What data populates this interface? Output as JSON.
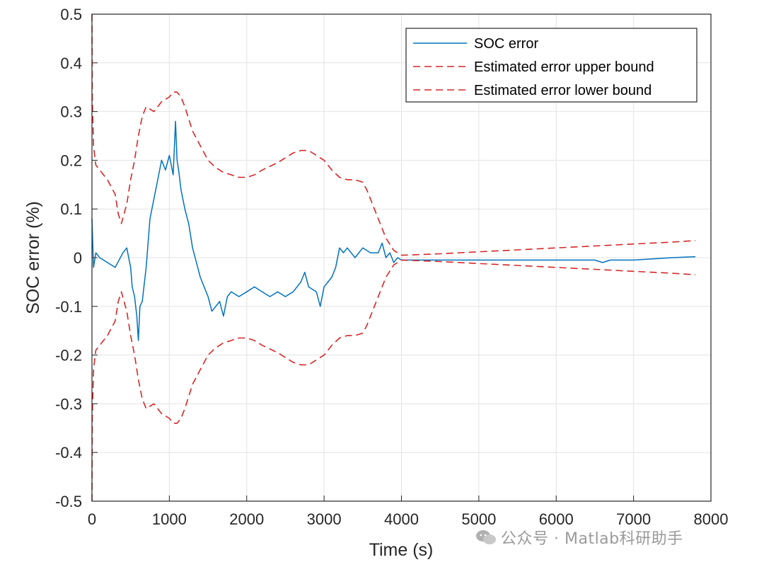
{
  "chart_data": {
    "type": "line",
    "xlabel": "Time (s)",
    "ylabel": "SOC error (%)",
    "xlim": [
      0,
      8000
    ],
    "ylim": [
      -0.5,
      0.5
    ],
    "xticks": [
      0,
      1000,
      2000,
      3000,
      4000,
      5000,
      6000,
      7000,
      8000
    ],
    "yticks": [
      -0.5,
      -0.4,
      -0.3,
      -0.2,
      -0.1,
      0,
      0.1,
      0.2,
      0.3,
      0.4,
      0.5
    ],
    "xtick_labels": [
      "0",
      "1000",
      "2000",
      "3000",
      "4000",
      "5000",
      "6000",
      "7000",
      "8000"
    ],
    "ytick_labels": [
      "-0.5",
      "-0.4",
      "-0.3",
      "-0.2",
      "-0.1",
      "0",
      "0.1",
      "0.2",
      "0.3",
      "0.4",
      "0.5"
    ],
    "grid": true,
    "legend_position": "top-right",
    "series": [
      {
        "name": "SOC error",
        "style": "solid",
        "color": "#0072bd",
        "x": [
          0,
          20,
          50,
          100,
          200,
          300,
          400,
          450,
          500,
          520,
          550,
          580,
          600,
          620,
          650,
          700,
          750,
          800,
          850,
          900,
          950,
          1000,
          1050,
          1080,
          1100,
          1120,
          1150,
          1200,
          1250,
          1300,
          1350,
          1400,
          1450,
          1500,
          1550,
          1600,
          1650,
          1700,
          1750,
          1800,
          1900,
          2000,
          2100,
          2200,
          2300,
          2400,
          2500,
          2600,
          2700,
          2750,
          2800,
          2900,
          2950,
          3000,
          3050,
          3100,
          3150,
          3200,
          3250,
          3300,
          3400,
          3500,
          3600,
          3700,
          3750,
          3800,
          3850,
          3900,
          3950,
          4000,
          4500,
          5000,
          5500,
          6000,
          6500,
          6600,
          6700,
          7000,
          7500,
          7800
        ],
        "y": [
          0.08,
          -0.02,
          0.01,
          0.0,
          -0.01,
          -0.02,
          0.01,
          0.02,
          -0.02,
          -0.06,
          -0.08,
          -0.12,
          -0.17,
          -0.1,
          -0.09,
          -0.02,
          0.08,
          0.12,
          0.16,
          0.2,
          0.18,
          0.21,
          0.17,
          0.28,
          0.2,
          0.18,
          0.14,
          0.1,
          0.07,
          0.02,
          -0.01,
          -0.04,
          -0.06,
          -0.08,
          -0.11,
          -0.1,
          -0.09,
          -0.12,
          -0.08,
          -0.07,
          -0.08,
          -0.07,
          -0.06,
          -0.07,
          -0.08,
          -0.07,
          -0.08,
          -0.07,
          -0.05,
          -0.03,
          -0.06,
          -0.07,
          -0.1,
          -0.06,
          -0.05,
          -0.04,
          -0.02,
          0.02,
          0.01,
          0.02,
          0.0,
          0.02,
          0.01,
          0.01,
          0.03,
          0.0,
          0.01,
          -0.01,
          0.0,
          -0.005,
          -0.005,
          -0.005,
          -0.005,
          -0.005,
          -0.005,
          -0.01,
          -0.005,
          -0.005,
          0.0,
          0.002
        ]
      },
      {
        "name": "Estimated error upper bound",
        "style": "dashed",
        "color": "#d62728",
        "x": [
          0,
          5,
          20,
          50,
          100,
          200,
          300,
          340,
          380,
          450,
          500,
          550,
          600,
          650,
          700,
          800,
          900,
          1000,
          1050,
          1100,
          1150,
          1200,
          1300,
          1400,
          1500,
          1600,
          1700,
          1800,
          1900,
          2000,
          2100,
          2200,
          2400,
          2600,
          2700,
          2800,
          2900,
          3000,
          3100,
          3200,
          3300,
          3400,
          3500,
          3550,
          3600,
          3700,
          3800,
          3900,
          4000,
          4500,
          5000,
          5500,
          6000,
          6500,
          7000,
          7500,
          7800
        ],
        "y": [
          0.5,
          0.33,
          0.23,
          0.19,
          0.18,
          0.16,
          0.13,
          0.09,
          0.07,
          0.11,
          0.16,
          0.2,
          0.25,
          0.29,
          0.31,
          0.3,
          0.32,
          0.33,
          0.34,
          0.34,
          0.33,
          0.31,
          0.26,
          0.23,
          0.2,
          0.185,
          0.175,
          0.17,
          0.165,
          0.165,
          0.17,
          0.18,
          0.195,
          0.215,
          0.22,
          0.22,
          0.21,
          0.2,
          0.18,
          0.165,
          0.16,
          0.16,
          0.155,
          0.14,
          0.12,
          0.08,
          0.04,
          0.015,
          0.005,
          0.008,
          0.012,
          0.016,
          0.02,
          0.024,
          0.028,
          0.032,
          0.035
        ]
      },
      {
        "name": "Estimated error lower bound",
        "style": "dashed",
        "color": "#d62728",
        "x": [
          0,
          5,
          20,
          50,
          100,
          200,
          300,
          340,
          380,
          450,
          500,
          550,
          600,
          650,
          700,
          800,
          900,
          1000,
          1050,
          1100,
          1150,
          1200,
          1300,
          1400,
          1500,
          1600,
          1700,
          1800,
          1900,
          2000,
          2100,
          2200,
          2400,
          2600,
          2700,
          2800,
          2900,
          3000,
          3100,
          3200,
          3300,
          3400,
          3500,
          3550,
          3600,
          3700,
          3800,
          3900,
          4000,
          4500,
          5000,
          5500,
          6000,
          6500,
          7000,
          7500,
          7800
        ],
        "y": [
          -0.5,
          -0.33,
          -0.23,
          -0.19,
          -0.18,
          -0.16,
          -0.13,
          -0.09,
          -0.07,
          -0.11,
          -0.16,
          -0.2,
          -0.25,
          -0.29,
          -0.31,
          -0.3,
          -0.32,
          -0.33,
          -0.34,
          -0.34,
          -0.33,
          -0.31,
          -0.26,
          -0.23,
          -0.2,
          -0.185,
          -0.175,
          -0.17,
          -0.165,
          -0.165,
          -0.17,
          -0.18,
          -0.195,
          -0.215,
          -0.22,
          -0.22,
          -0.21,
          -0.2,
          -0.18,
          -0.165,
          -0.16,
          -0.16,
          -0.155,
          -0.14,
          -0.12,
          -0.08,
          -0.04,
          -0.015,
          -0.005,
          -0.008,
          -0.012,
          -0.016,
          -0.02,
          -0.024,
          -0.028,
          -0.032,
          -0.035
        ]
      }
    ]
  },
  "watermark": {
    "text": "公众号 · Matlab科研助手",
    "icon": "wechat-icon"
  }
}
